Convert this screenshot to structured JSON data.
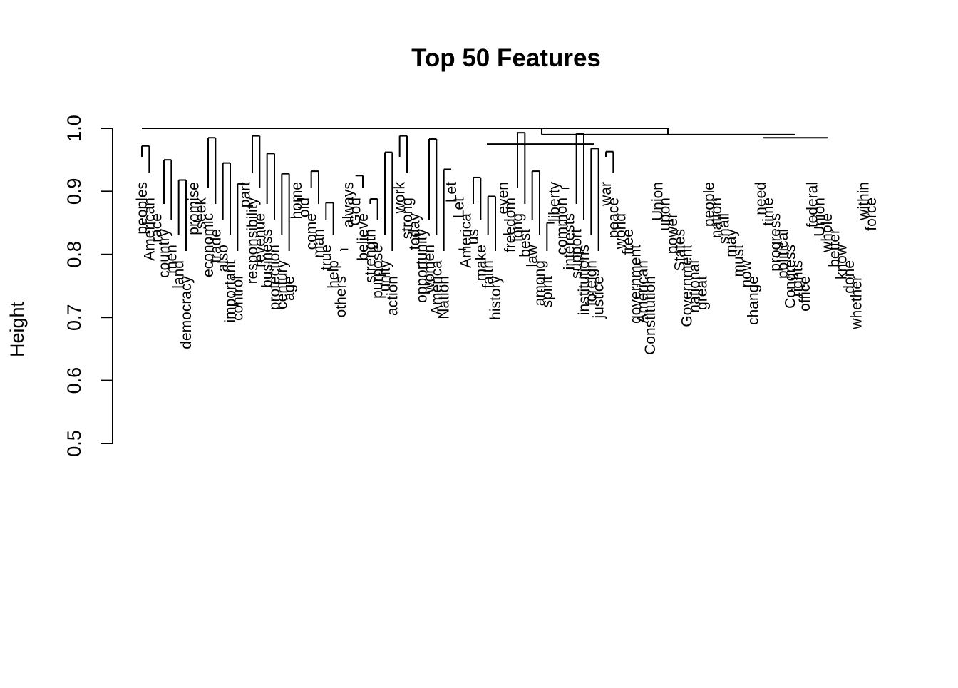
{
  "chart_data": {
    "type": "dendrogram",
    "title": "Top 50 Features",
    "ylabel": "Height",
    "ylim": [
      0.5,
      1.0
    ],
    "yticks": [
      "0.5",
      "0.6",
      "0.7",
      "0.8",
      "0.9",
      "1.0"
    ],
    "leaves": [
      "peoples",
      "American",
      "race",
      "country",
      "men",
      "land",
      "democracy",
      "promise",
      "seek",
      "economic",
      "trade",
      "also",
      "important",
      "control",
      "part",
      "responsibility",
      "revenue",
      "business",
      "protection",
      "century",
      "age",
      "home",
      "old",
      "come",
      "man",
      "true",
      "help",
      "others",
      "always",
      "God",
      "believe",
      "strength",
      "purpose",
      "unity",
      "action",
      "work",
      "strong",
      "today",
      "opportunity",
      "women",
      "America",
      "Nation",
      "Let",
      "Let",
      "America",
      "us",
      "make",
      "faith",
      "history",
      "even",
      "freedom",
      "long",
      "best",
      "law",
      "among",
      "spirit",
      "liberty",
      "common",
      "interests",
      "support",
      "institutions",
      "foreign",
      "justice",
      "war",
      "peace",
      "world",
      "free",
      "government",
      "American",
      "Constitution",
      "Union",
      "upon",
      "power",
      "States",
      "Government",
      "national",
      "great",
      "people",
      "nation",
      "shall",
      "may",
      "must",
      "now",
      "change",
      "need",
      "time",
      "progress",
      "political",
      "Congress",
      "rights",
      "office",
      "federal",
      "Union",
      "whole",
      "better",
      "know",
      "done",
      "whether",
      "within",
      "force"
    ],
    "merges": [
      {
        "a": 0,
        "b": 1,
        "h": 0.972
      },
      {
        "a": 3,
        "b": 4,
        "h": 0.95
      },
      {
        "a": 5,
        "b": 6,
        "h": 0.918
      },
      {
        "a": 7,
        "b": 8,
        "h": 0.852
      },
      {
        "a": 9,
        "b": 10,
        "h": 0.985
      },
      {
        "a": 11,
        "b": 12,
        "h": 0.945
      },
      {
        "a": 13,
        "b": 14,
        "h": 0.912
      },
      {
        "a": 15,
        "b": 16,
        "h": 0.988
      },
      {
        "a": 17,
        "b": 18,
        "h": 0.96
      },
      {
        "a": 19,
        "b": 20,
        "h": 0.928
      },
      {
        "a": 21,
        "b": 22,
        "h": 0.888
      },
      {
        "a": 23,
        "b": 24,
        "h": 0.932
      },
      {
        "a": 25,
        "b": 26,
        "h": 0.882
      },
      {
        "a": 27,
        "b": 28,
        "h": 0.808
      },
      {
        "a": 29,
        "b": 30,
        "h": 0.925
      },
      {
        "a": 31,
        "b": 32,
        "h": 0.888
      },
      {
        "a": 33,
        "b": 34,
        "h": 0.962
      },
      {
        "a": 35,
        "b": 36,
        "h": 0.988
      },
      {
        "a": 37,
        "b": 38,
        "h": 0.832
      },
      {
        "a": 39,
        "b": 40,
        "h": 0.983
      },
      {
        "a": 41,
        "b": 42,
        "h": 0.935
      },
      {
        "a": 43,
        "b": 44,
        "h": 0.808
      },
      {
        "a": 45,
        "b": 46,
        "h": 0.922
      },
      {
        "a": 47,
        "b": 48,
        "h": 0.892
      },
      {
        "a": 49,
        "b": 50,
        "h": 0.832
      },
      {
        "a": 51,
        "b": 52,
        "h": 0.993
      },
      {
        "a": 53,
        "b": 54,
        "h": 0.932
      },
      {
        "a": 55,
        "b": 56,
        "h": 0.85
      },
      {
        "a": 57,
        "b": 58,
        "h": 0.905
      },
      {
        "a": 59,
        "b": 60,
        "h": 0.992
      },
      {
        "a": 61,
        "b": 62,
        "h": 0.968
      },
      {
        "a": 63,
        "b": 64,
        "h": 0.963
      }
    ]
  }
}
